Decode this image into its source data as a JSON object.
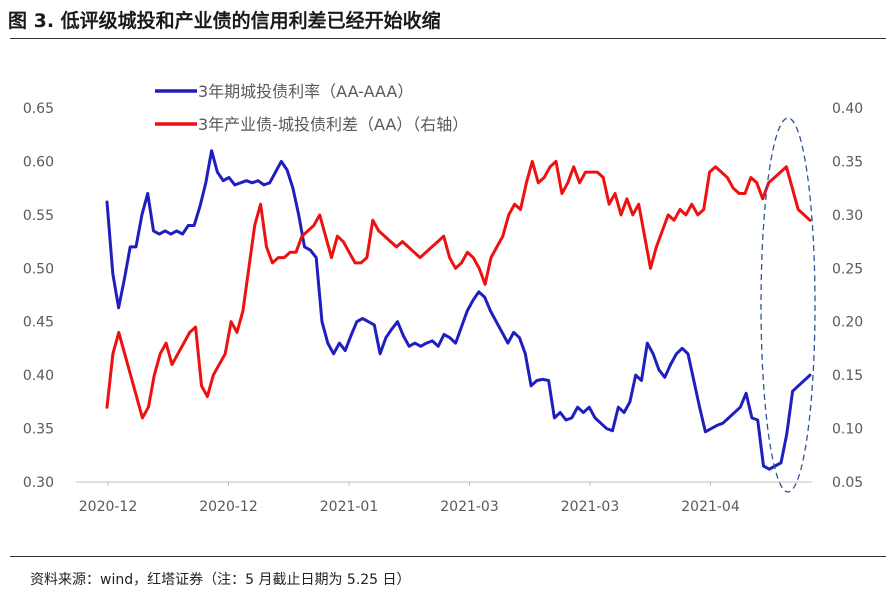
{
  "header": {
    "figure_title": "图 3. 低评级城投和产业债的信用利差已经开始收缩"
  },
  "footer": {
    "source": "资料来源：wind，红塔证券（注：5 月截止日期为 5.25 日）"
  },
  "chart_data": {
    "type": "line",
    "x_tick_labels": [
      "2020-12",
      "2020-12",
      "2021-01",
      "2021-03",
      "2021-03",
      "2021-04"
    ],
    "y_left": {
      "ticks": [
        "0.30",
        "0.35",
        "0.40",
        "0.45",
        "0.50",
        "0.55",
        "0.60",
        "0.65"
      ],
      "lim": [
        0.3,
        0.65
      ]
    },
    "y_right": {
      "ticks": [
        "0.05",
        "0.10",
        "0.15",
        "0.20",
        "0.25",
        "0.30",
        "0.35",
        "0.40"
      ],
      "lim": [
        0.05,
        0.4
      ]
    },
    "legend_position": "top-center",
    "grid": false,
    "highlight": {
      "shape": "dashed-ellipse",
      "color": "#2f5597",
      "region": "last-segment"
    },
    "series": [
      {
        "name": "3年期城投债利率（AA-AAA）",
        "axis": "left",
        "color": "#1f1fbf",
        "values": [
          0.562,
          0.495,
          0.463,
          0.49,
          0.52,
          0.52,
          0.55,
          0.57,
          0.535,
          0.532,
          0.535,
          0.532,
          0.535,
          0.532,
          0.54,
          0.54,
          0.558,
          0.58,
          0.61,
          0.59,
          0.582,
          0.585,
          0.578,
          0.58,
          0.582,
          0.58,
          0.582,
          0.578,
          0.58,
          0.59,
          0.6,
          0.592,
          0.575,
          0.55,
          0.52,
          0.517,
          0.51,
          0.45,
          0.43,
          0.42,
          0.43,
          0.423,
          0.437,
          0.45,
          0.453,
          0.45,
          0.447,
          0.42,
          0.435,
          0.443,
          0.45,
          0.437,
          0.427,
          0.43,
          0.427,
          0.43,
          0.432,
          0.427,
          0.438,
          0.435,
          0.43,
          0.445,
          0.46,
          0.47,
          0.478,
          0.473,
          0.46,
          0.45,
          0.44,
          0.43,
          0.44,
          0.435,
          0.42,
          0.39,
          0.395,
          0.396,
          0.395,
          0.36,
          0.365,
          0.358,
          0.36,
          0.37,
          0.365,
          0.37,
          0.36,
          0.355,
          0.35,
          0.348,
          0.37,
          0.365,
          0.375,
          0.4,
          0.395,
          0.43,
          0.42,
          0.405,
          0.398,
          0.41,
          0.42,
          0.425,
          0.42,
          0.395,
          0.37,
          0.347,
          0.35,
          0.353,
          0.355,
          0.36,
          0.365,
          0.37,
          0.383,
          0.36,
          0.358,
          0.315,
          0.312,
          0.315,
          0.318,
          0.345,
          0.385,
          0.39,
          0.395,
          0.4
        ]
      },
      {
        "name": "3年产业债-城投债利差（AA）（右轴）",
        "axis": "right",
        "color": "#ee1111",
        "values": [
          0.12,
          0.17,
          0.19,
          0.17,
          0.15,
          0.13,
          0.11,
          0.12,
          0.15,
          0.17,
          0.18,
          0.16,
          0.17,
          0.18,
          0.19,
          0.195,
          0.14,
          0.13,
          0.15,
          0.16,
          0.17,
          0.2,
          0.19,
          0.21,
          0.25,
          0.29,
          0.31,
          0.27,
          0.255,
          0.26,
          0.26,
          0.265,
          0.265,
          0.28,
          0.285,
          0.29,
          0.3,
          0.28,
          0.26,
          0.28,
          0.275,
          0.265,
          0.255,
          0.255,
          0.26,
          0.295,
          0.285,
          0.28,
          0.275,
          0.27,
          0.275,
          0.27,
          0.265,
          0.26,
          0.265,
          0.27,
          0.275,
          0.28,
          0.26,
          0.25,
          0.255,
          0.265,
          0.26,
          0.25,
          0.235,
          0.26,
          0.27,
          0.28,
          0.3,
          0.31,
          0.305,
          0.33,
          0.35,
          0.33,
          0.335,
          0.345,
          0.35,
          0.32,
          0.33,
          0.345,
          0.33,
          0.34,
          0.34,
          0.34,
          0.335,
          0.31,
          0.32,
          0.3,
          0.315,
          0.3,
          0.31,
          0.28,
          0.25,
          0.27,
          0.285,
          0.3,
          0.295,
          0.305,
          0.3,
          0.31,
          0.3,
          0.305,
          0.34,
          0.345,
          0.34,
          0.335,
          0.325,
          0.32,
          0.32,
          0.335,
          0.33,
          0.315,
          0.33,
          0.335,
          0.34,
          0.345,
          0.325,
          0.305,
          0.3,
          0.295
        ]
      }
    ]
  }
}
